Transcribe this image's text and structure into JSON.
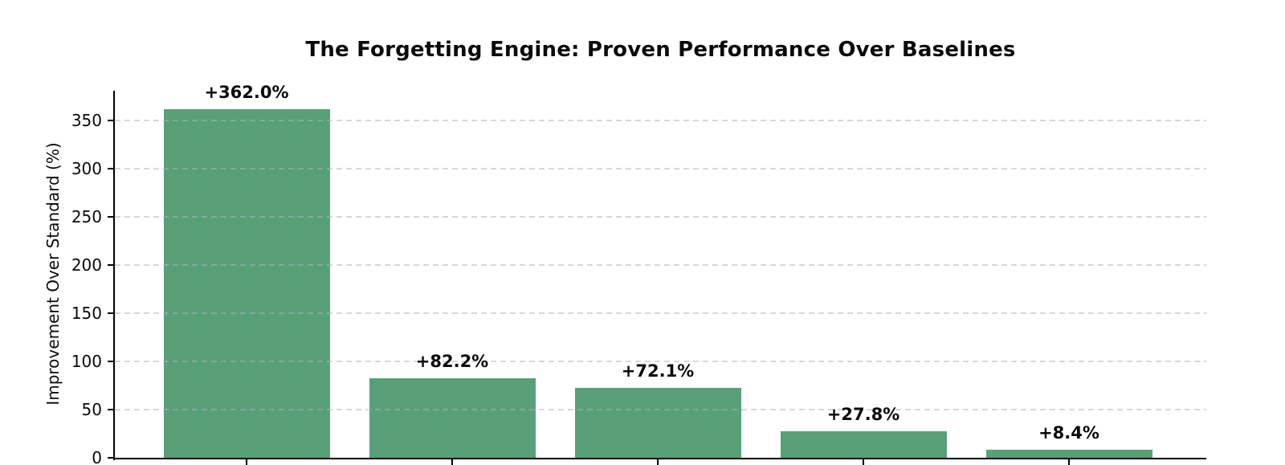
{
  "chart_data": {
    "type": "bar",
    "title": "The Forgetting Engine: Proven Performance Over Baselines",
    "ylabel": "Improvement Over Standard (%)",
    "xlabel": "",
    "values": [
      362.0,
      82.2,
      72.1,
      27.8,
      8.4
    ],
    "bar_labels": [
      "+362.0%",
      "+82.2%",
      "+72.1%",
      "+27.8%",
      "+8.4%"
    ],
    "yticks": [
      0,
      50,
      100,
      150,
      200,
      250,
      300,
      350
    ],
    "ylim": [
      0,
      380
    ],
    "grid": "horizontal-dashed",
    "legend": null,
    "xticklabels": [],
    "colors": {
      "bar": "#58a078",
      "axis": "#000000",
      "grid": "#d9d9d9",
      "text": "#0a0a0a",
      "background": "#ffffff"
    }
  }
}
